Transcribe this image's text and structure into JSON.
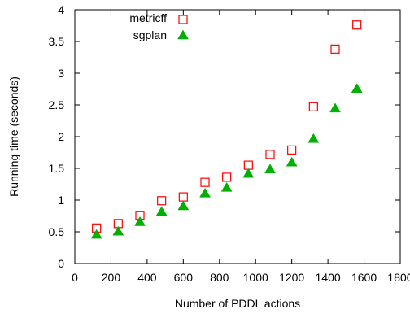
{
  "chart_data": {
    "type": "scatter",
    "xlabel": "Number of PDDL actions",
    "ylabel": "Running time (seconds)",
    "xlim": [
      0,
      1800
    ],
    "ylim": [
      0,
      4
    ],
    "xticks": [
      "0",
      "200",
      "400",
      "600",
      "800",
      "1000",
      "1200",
      "1400",
      "1600",
      "1800"
    ],
    "yticks": [
      "0",
      "0.5",
      "1",
      "1.5",
      "2",
      "2.5",
      "3",
      "3.5",
      "4"
    ],
    "grid": false,
    "legend_position": "top-left",
    "series": [
      {
        "name": "metricff",
        "marker": "open-square",
        "color": "#ff0000",
        "x": [
          120,
          240,
          360,
          480,
          600,
          720,
          840,
          960,
          1080,
          1200,
          1320,
          1440,
          1560
        ],
        "y": [
          0.56,
          0.63,
          0.76,
          0.99,
          1.05,
          1.28,
          1.36,
          1.55,
          1.72,
          1.79,
          2.47,
          3.38,
          3.76
        ]
      },
      {
        "name": "sgplan",
        "marker": "filled-triangle",
        "color": "#00b000",
        "x": [
          120,
          240,
          360,
          480,
          600,
          720,
          840,
          960,
          1080,
          1200,
          1320,
          1440,
          1560
        ],
        "y": [
          0.46,
          0.51,
          0.66,
          0.82,
          0.91,
          1.11,
          1.2,
          1.42,
          1.49,
          1.6,
          1.97,
          2.45,
          2.76
        ]
      }
    ]
  }
}
